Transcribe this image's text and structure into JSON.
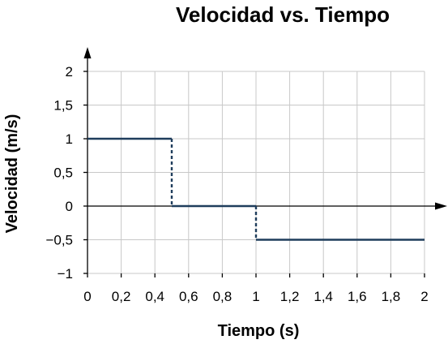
{
  "chart_data": {
    "type": "line",
    "title": "Velocidad vs. Tiempo",
    "xlabel": "Tiempo (s)",
    "ylabel": "Velocidad (m/s)",
    "xlim": [
      0,
      2
    ],
    "ylim": [
      -1,
      2
    ],
    "x_ticks": [
      0,
      0.2,
      0.4,
      0.6,
      0.8,
      1,
      1.2,
      1.4,
      1.6,
      1.8,
      2
    ],
    "x_tick_labels": [
      "0",
      "0,2",
      "0,4",
      "0,6",
      "0,8",
      "1",
      "1,2",
      "1,4",
      "1,6",
      "1,8",
      "2"
    ],
    "y_ticks": [
      -1,
      -0.5,
      0,
      0.5,
      1,
      1.5,
      2
    ],
    "y_tick_labels": [
      "−1",
      "−0,5",
      "0",
      "0,5",
      "1",
      "1,5",
      "2"
    ],
    "grid": true,
    "legend": "none",
    "series": [
      {
        "segments": [
          {
            "x": [
              0,
              0.5
            ],
            "y": [
              1,
              1
            ]
          },
          {
            "x": [
              0.5,
              1
            ],
            "y": [
              0,
              0
            ]
          },
          {
            "x": [
              1,
              2
            ],
            "y": [
              -0.5,
              -0.5
            ]
          }
        ],
        "jumps": [
          {
            "x": 0.5,
            "from": 1,
            "to": 0
          },
          {
            "x": 1,
            "from": 0,
            "to": -0.5
          }
        ],
        "color": "#1f3d5c"
      }
    ]
  }
}
